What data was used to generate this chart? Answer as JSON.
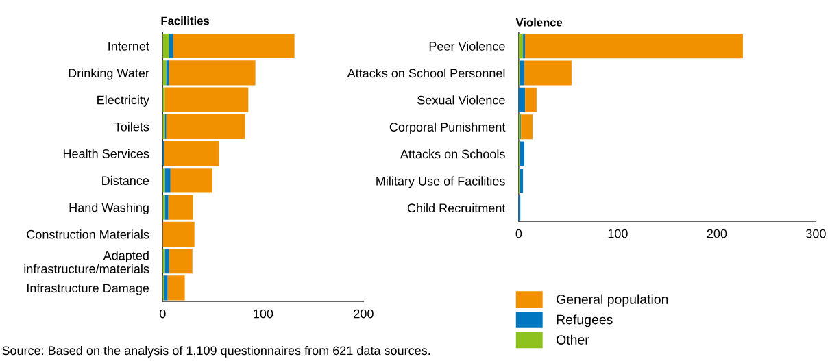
{
  "chart_data": [
    {
      "type": "bar",
      "orientation": "horizontal",
      "stacked": true,
      "title": "Facilities",
      "categories": [
        "Internet",
        "Drinking Water",
        "Electricity",
        "Toilets",
        "Health Services",
        "Distance",
        "Hand Washing",
        "Construction Materials",
        "Adapted\ninfrastructure/materials",
        "Infrastructure Damage"
      ],
      "series": [
        {
          "color": "#8dc21f",
          "values": [
            6.4,
            3.6,
            2.3,
            2.3,
            0,
            2.3,
            2.3,
            0,
            2.3,
            1.6
          ]
        },
        {
          "color": "#0077c0",
          "values": [
            4.1,
            2.7,
            0,
            1.4,
            1.6,
            5.5,
            3.4,
            0,
            4.1,
            3.4
          ]
        },
        {
          "color": "#f29100",
          "values": [
            120.7,
            86,
            83,
            78.4,
            54.5,
            41.6,
            24.5,
            31.6,
            23.2,
            17
          ]
        }
      ],
      "xlim": [
        0,
        200
      ],
      "xticks": [
        0,
        100,
        200
      ],
      "grid": false,
      "annotations": [
        "Source: Based on the analysis of 1,109 questionnaires from 621 data sources."
      ]
    },
    {
      "type": "bar",
      "orientation": "horizontal",
      "stacked": true,
      "title": "Violence",
      "categories": [
        "Peer Violence",
        "Attacks on School Personnel",
        "Sexual Violence",
        "Corporal Punishment",
        "Attacks on Schools",
        "Military Use of Facilities",
        "Child Recruitment"
      ],
      "series": [
        {
          "name": "Other",
          "color": "#8dc21f",
          "values": [
            4.3,
            1.1,
            0,
            1.6,
            1.1,
            1.1,
            0
          ]
        },
        {
          "name": "Refugees",
          "color": "#0077c0",
          "values": [
            2,
            4.5,
            6.4,
            0.7,
            4.5,
            3.2,
            1.6
          ]
        },
        {
          "name": "General population",
          "color": "#f29100",
          "values": [
            220,
            47.7,
            11.6,
            11.6,
            0,
            0,
            0
          ]
        }
      ],
      "xlim": [
        0,
        300
      ],
      "xticks": [
        0,
        100,
        200,
        300
      ],
      "grid": false,
      "legend": "bottom left"
    }
  ]
}
